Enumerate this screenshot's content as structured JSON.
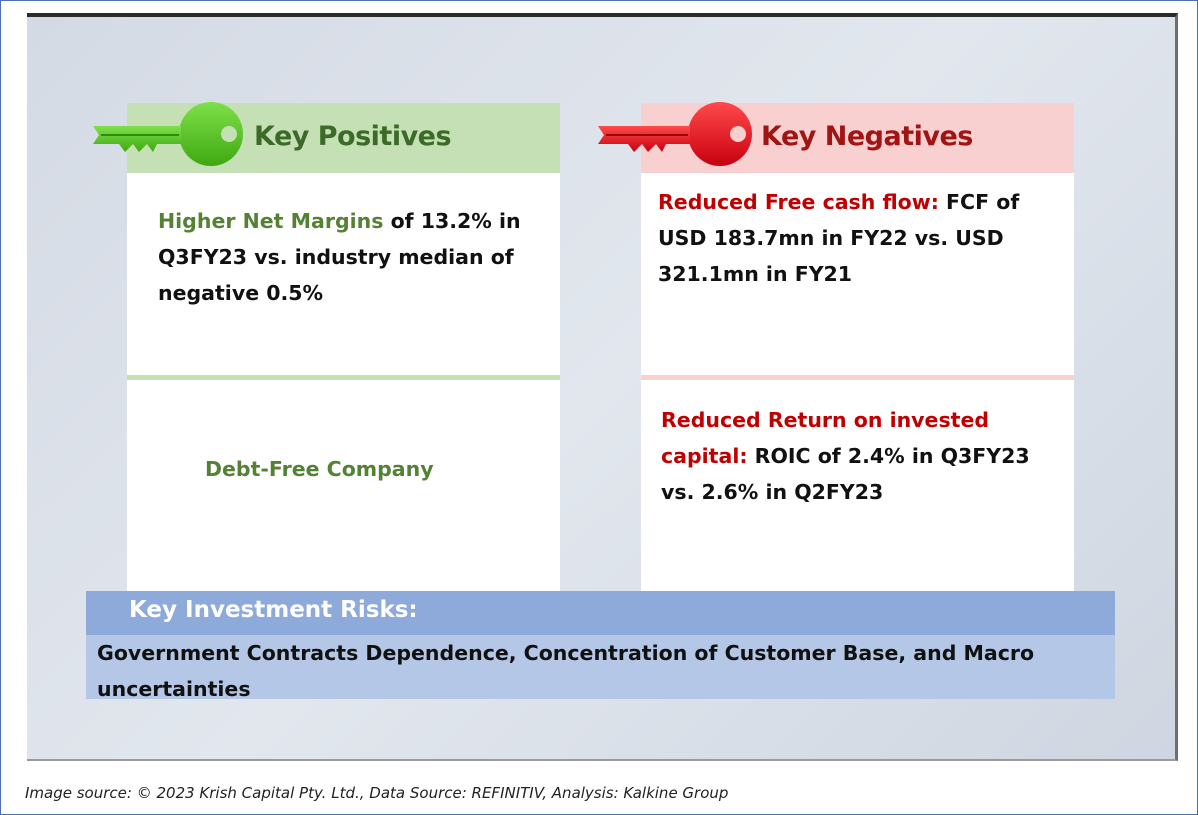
{
  "positives": {
    "title": "Key Positives",
    "item1": {
      "highlight": "Higher Net Margins",
      "text": " of 13.2% in Q3FY23 vs. industry median of negative 0.5%"
    },
    "item2": {
      "highlight": "Debt-Free Company"
    }
  },
  "negatives": {
    "title": "Key Negatives",
    "item1": {
      "highlight": "Reduced Free cash flow:",
      "text": " FCF of USD 183.7mn in FY22 vs. USD 321.1mn in FY21"
    },
    "item2": {
      "highlight": "Reduced Return on invested capital:",
      "text": " ROIC of 2.4% in Q3FY23 vs. 2.6% in Q2FY23"
    }
  },
  "risks": {
    "title": "Key Investment Risks:",
    "text": "Government Contracts Dependence, Concentration of Customer Base, and Macro uncertainties"
  },
  "caption": "Image source: © 2023 Krish Capital Pty. Ltd., Data Source: REFINITIV, Analysis: Kalkine Group",
  "colors": {
    "positive_key": "#5cc424",
    "negative_key": "#e0141e",
    "positive_title": "#3c6a28",
    "negative_title": "#a11414"
  },
  "icons": {
    "positive": "key-icon",
    "negative": "key-icon"
  }
}
